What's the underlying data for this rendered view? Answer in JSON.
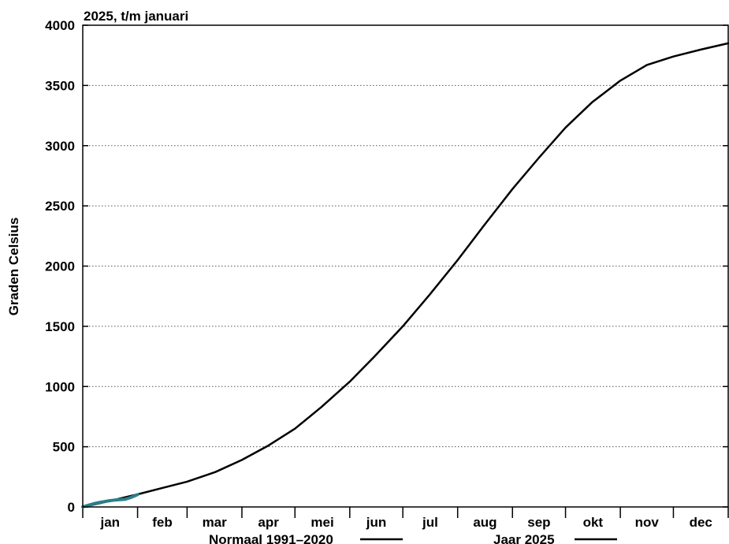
{
  "chart_data": {
    "type": "line",
    "title": "2025, t/m januari",
    "ylabel": "Graden Celsius",
    "xlabel": "",
    "ylim": [
      0,
      4000
    ],
    "yticks": [
      0,
      500,
      1000,
      1500,
      2000,
      2500,
      3000,
      3500,
      4000
    ],
    "xlim": [
      0,
      365
    ],
    "x_unit": "day of year",
    "months": [
      "jan",
      "feb",
      "mar",
      "apr",
      "mei",
      "jun",
      "jul",
      "aug",
      "sep",
      "okt",
      "nov",
      "dec"
    ],
    "grid": "horizontal dotted",
    "legend_position": "bottom",
    "series": [
      {
        "name": "Normaal 1991–2020",
        "color": "#000000",
        "x": [
          0,
          10,
          20,
          31,
          45,
          59,
          75,
          90,
          105,
          120,
          135,
          151,
          165,
          181,
          196,
          212,
          227,
          243,
          258,
          273,
          288,
          304,
          319,
          334,
          350,
          365
        ],
        "y": [
          0,
          32,
          66,
          105,
          158,
          210,
          290,
          390,
          510,
          650,
          830,
          1040,
          1250,
          1500,
          1760,
          2050,
          2340,
          2640,
          2900,
          3150,
          3360,
          3540,
          3670,
          3740,
          3800,
          3850
        ]
      },
      {
        "name": "Jaar 2025",
        "color": "#2a7f8a",
        "x": [
          0,
          3,
          6,
          9,
          12,
          15,
          18,
          21,
          24,
          27,
          30,
          31
        ],
        "y": [
          0,
          14,
          26,
          36,
          44,
          52,
          57,
          60,
          64,
          78,
          96,
          103
        ]
      }
    ]
  }
}
